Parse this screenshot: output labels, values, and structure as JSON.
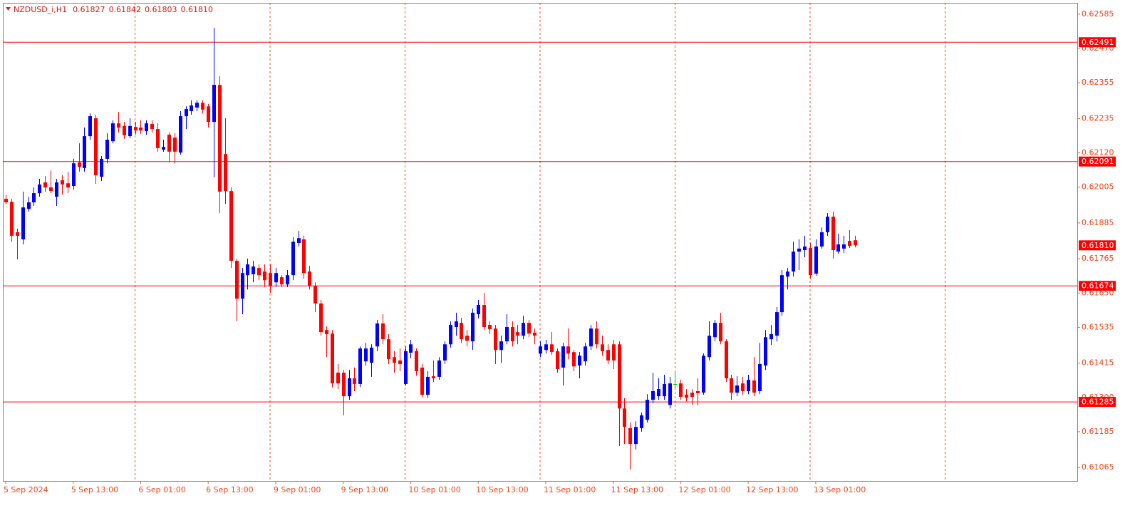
{
  "chart_data": {
    "type": "candlestick",
    "title": "NZDUSD_i,H1",
    "ohlc_labels": [
      "0.61827",
      "0.61842",
      "0.61803",
      "0.61810"
    ],
    "up_color": "#0000ff",
    "down_color": "#ff0000",
    "doji_color": "#00c000",
    "level_color": "#ff0000",
    "xlim": [
      -0.5,
      190.5
    ],
    "xticks": [
      {
        "value": 0,
        "label": "5 Sep 2024"
      },
      {
        "value": 12,
        "label": "5 Sep 13:00"
      },
      {
        "value": 24,
        "label": "6 Sep 01:00"
      },
      {
        "value": 36,
        "label": "6 Sep 13:00"
      },
      {
        "value": 48,
        "label": "9 Sep 01:00"
      },
      {
        "value": 60,
        "label": "9 Sep 13:00"
      },
      {
        "value": 72,
        "label": "10 Sep 01:00"
      },
      {
        "value": 84,
        "label": "10 Sep 13:00"
      },
      {
        "value": 96,
        "label": "11 Sep 01:00"
      },
      {
        "value": 108,
        "label": "11 Sep 13:00"
      },
      {
        "value": 120,
        "label": "12 Sep 01:00"
      },
      {
        "value": 132,
        "label": "12 Sep 13:00"
      },
      {
        "value": 144,
        "label": "13 Sep 01:00"
      }
    ],
    "ylim": [
      0.6102,
      0.62623
    ],
    "yticks": [
      0.62585,
      {
        "value": 0.6247,
        "label": "0.62470"
      },
      0.62355,
      0.62235,
      {
        "value": 0.6212,
        "label": "0.62120"
      },
      0.62005,
      0.61885,
      0.61765,
      {
        "value": 0.6165,
        "label": "0.61650"
      },
      0.61535,
      0.61415,
      {
        "value": 0.613,
        "label": "0.61300"
      },
      0.61185,
      0.61065
    ],
    "levels": [
      0.62491,
      0.62091,
      0.61674,
      0.61285
    ],
    "open": [
      0.61966,
      0.61956,
      0.61854,
      0.6183,
      0.61932,
      0.61954,
      0.61985,
      0.62021,
      0.62004,
      0.61973,
      0.62028,
      0.62018,
      0.62009,
      0.62088,
      0.62069,
      0.62176,
      0.62236,
      0.6204,
      0.621,
      0.62159,
      0.62219,
      0.6221,
      0.62176,
      0.62207,
      0.62205,
      0.62193,
      0.62217,
      0.622,
      0.62131,
      0.62181,
      0.62171,
      0.62121,
      0.62243,
      0.6226,
      0.62272,
      0.62288,
      0.62276,
      0.62224,
      0.62348,
      0.62116,
      0.61992,
      0.61758,
      0.61631,
      0.6171,
      0.61713,
      0.61734,
      0.61722,
      0.61717,
      0.61686,
      0.61703,
      0.61679,
      0.6171,
      0.61818,
      0.6183,
      0.61722,
      0.61674,
      0.61615,
      0.61526,
      0.61514,
      0.61383,
      0.61383,
      0.61304,
      0.61364,
      0.61345,
      0.61421,
      0.61416,
      0.61471,
      0.61548,
      0.61495,
      0.61435,
      0.61424,
      0.61345,
      0.6145,
      0.61455,
      0.614,
      0.61309,
      0.61371,
      0.61369,
      0.61424,
      0.61478,
      0.61536,
      0.6155,
      0.61507,
      0.61488,
      0.61579,
      0.6161,
      0.61543,
      0.61531,
      0.61459,
      0.61488,
      0.61536,
      0.61519,
      0.61507,
      0.6155,
      0.61517,
      0.61447,
      0.61459,
      0.61478,
      0.61455,
      0.614,
      0.61471,
      0.61452,
      0.61407,
      0.61421,
      0.61471,
      0.61531,
      0.61478,
      0.61459,
      0.61478,
      0.61478,
      0.61263,
      0.61197,
      0.61144,
      0.61197,
      0.61225,
      0.61292,
      0.61304,
      0.61304,
      0.61275,
      0.61345,
      0.61347,
      0.61309,
      0.61316,
      0.61321,
      0.61316,
      0.61435,
      0.61502,
      0.6155,
      0.61488,
      0.61364,
      0.61316,
      0.61347,
      0.61321,
      0.61357,
      0.61321,
      0.61407,
      0.61495,
      0.61507,
      0.61586,
      0.61705,
      0.61722,
      0.61789,
      0.61794,
      0.61801,
      0.61715,
      0.61806,
      0.61854,
      0.61906,
      0.61789,
      0.61799,
      0.61825,
      0.61827
    ],
    "high": [
      0.6198,
      0.61966,
      0.61866,
      0.6199,
      0.61973,
      0.62004,
      0.62033,
      0.62042,
      0.62061,
      0.62033,
      0.62045,
      0.62057,
      0.621,
      0.62152,
      0.62205,
      0.62252,
      0.62248,
      0.62109,
      0.62186,
      0.62229,
      0.62257,
      0.62224,
      0.62236,
      0.62224,
      0.62229,
      0.62229,
      0.62229,
      0.62219,
      0.62164,
      0.62188,
      0.62186,
      0.6226,
      0.62276,
      0.62296,
      0.62296,
      0.62296,
      0.62284,
      0.62539,
      0.62377,
      0.62236,
      0.62004,
      0.61765,
      0.61734,
      0.61765,
      0.61758,
      0.61746,
      0.61746,
      0.61746,
      0.61734,
      0.6171,
      0.61727,
      0.61837,
      0.61858,
      0.61842,
      0.61741,
      0.61686,
      0.61627,
      0.61538,
      0.61526,
      0.61412,
      0.61392,
      0.61392,
      0.614,
      0.61471,
      0.61483,
      0.61478,
      0.6156,
      0.61579,
      0.61512,
      0.61455,
      0.61464,
      0.61471,
      0.61493,
      0.61464,
      0.61412,
      0.61388,
      0.61424,
      0.61435,
      0.61488,
      0.61555,
      0.61584,
      0.61567,
      0.61526,
      0.61598,
      0.61627,
      0.6165,
      0.61555,
      0.61543,
      0.61507,
      0.61579,
      0.61555,
      0.61543,
      0.61574,
      0.6156,
      0.61531,
      0.61488,
      0.61493,
      0.61519,
      0.61464,
      0.61483,
      0.61531,
      0.61459,
      0.61452,
      0.61483,
      0.61543,
      0.61555,
      0.61507,
      0.61478,
      0.61493,
      0.61488,
      0.61297,
      0.61216,
      0.6122,
      0.61249,
      0.61311,
      0.61383,
      0.61364,
      0.61376,
      0.61369,
      0.61383,
      0.61359,
      0.61328,
      0.61328,
      0.61364,
      0.61447,
      0.61555,
      0.6156,
      0.61584,
      0.61495,
      0.61376,
      0.61371,
      0.61369,
      0.61376,
      0.61435,
      0.61483,
      0.61526,
      0.61543,
      0.61603,
      0.61727,
      0.61734,
      0.61822,
      0.6183,
      0.61842,
      0.61818,
      0.6183,
      0.6187,
      0.61918,
      0.61923,
      0.61849,
      0.61842,
      0.61861,
      0.61842
    ],
    "low": [
      0.61949,
      0.61822,
      0.61763,
      0.61813,
      0.61923,
      0.61942,
      0.61973,
      0.6199,
      0.61985,
      0.61942,
      0.6198,
      0.61985,
      0.61997,
      0.62057,
      0.62057,
      0.62164,
      0.62016,
      0.62026,
      0.62085,
      0.62152,
      0.62188,
      0.62167,
      0.62169,
      0.62181,
      0.62183,
      0.62181,
      0.62188,
      0.62124,
      0.62124,
      0.62088,
      0.62085,
      0.62114,
      0.622,
      0.62248,
      0.6226,
      0.62252,
      0.62205,
      0.62038,
      0.61918,
      0.61949,
      0.61734,
      0.61555,
      0.61579,
      0.61662,
      0.61686,
      0.61693,
      0.6167,
      0.6165,
      0.6167,
      0.6167,
      0.6167,
      0.61693,
      0.61806,
      0.61698,
      0.61662,
      0.61586,
      0.61507,
      0.61435,
      0.61333,
      0.61328,
      0.6124,
      0.61292,
      0.61321,
      0.61335,
      0.61407,
      0.61369,
      0.61455,
      0.61478,
      0.61412,
      0.61383,
      0.61388,
      0.6134,
      0.61431,
      0.61373,
      0.61299,
      0.61299,
      0.61352,
      0.61359,
      0.61412,
      0.61467,
      0.61507,
      0.61483,
      0.61471,
      0.61459,
      0.61565,
      0.61526,
      0.61512,
      0.61412,
      0.61416,
      0.61478,
      0.61471,
      0.61478,
      0.61495,
      0.61502,
      0.61478,
      0.61435,
      0.61447,
      0.61443,
      0.61383,
      0.6134,
      0.61428,
      0.61388,
      0.61364,
      0.61407,
      0.61459,
      0.61464,
      0.6144,
      0.61412,
      0.61395,
      0.61137,
      0.61144,
      0.61058,
      0.61125,
      0.61185,
      0.61216,
      0.6128,
      0.61292,
      0.61292,
      0.61263,
      0.61328,
      0.61292,
      0.61287,
      0.61275,
      0.61273,
      0.61309,
      0.61424,
      0.61488,
      0.61478,
      0.61352,
      0.61292,
      0.61304,
      0.61309,
      0.61311,
      0.61304,
      0.61311,
      0.61392,
      0.61476,
      0.61488,
      0.61574,
      0.61662,
      0.61705,
      0.61727,
      0.6177,
      0.61698,
      0.61708,
      0.61799,
      0.61842,
      0.61765,
      0.61782,
      0.61784,
      0.61801,
      0.61803
    ],
    "close": [
      0.61954,
      0.61842,
      0.61842,
      0.61937,
      0.61954,
      0.61985,
      0.62014,
      0.62004,
      0.61992,
      0.62021,
      0.62014,
      0.62004,
      0.62085,
      0.62073,
      0.62176,
      0.62243,
      0.62045,
      0.621,
      0.62164,
      0.62219,
      0.62205,
      0.62179,
      0.6221,
      0.62195,
      0.62195,
      0.62219,
      0.622,
      0.62136,
      0.6214,
      0.62124,
      0.62124,
      0.62243,
      0.62267,
      0.62279,
      0.62288,
      0.62265,
      0.62224,
      0.62348,
      0.6199,
      0.61992,
      0.61758,
      0.61631,
      0.61717,
      0.61746,
      0.61739,
      0.6171,
      0.61693,
      0.61674,
      0.61717,
      0.61679,
      0.6171,
      0.61822,
      0.61834,
      0.61717,
      0.61674,
      0.61615,
      0.61519,
      0.61512,
      0.61347,
      0.61347,
      0.61304,
      0.61364,
      0.61345,
      0.61464,
      0.61464,
      0.61467,
      0.61548,
      0.61495,
      0.61428,
      0.61416,
      0.61412,
      0.61455,
      0.61478,
      0.61388,
      0.61309,
      0.61369,
      0.61364,
      0.61424,
      0.61478,
      0.61543,
      0.61555,
      0.61495,
      0.6149,
      0.61584,
      0.6161,
      0.61536,
      0.61529,
      0.61459,
      0.61488,
      0.61536,
      0.61488,
      0.61507,
      0.6155,
      0.61514,
      0.61507,
      0.61471,
      0.61478,
      0.61452,
      0.61395,
      0.61471,
      0.61447,
      0.61404,
      0.6144,
      0.61471,
      0.61531,
      0.61478,
      0.61455,
      0.61424,
      0.61424,
      0.61263,
      0.61201,
      0.61144,
      0.61201,
      0.6124,
      0.61292,
      0.61321,
      0.61328,
      0.61345,
      0.61347,
      0.61345,
      0.61302,
      0.61299,
      0.61302,
      0.61314,
      0.6144,
      0.61507,
      0.6155,
      0.61488,
      0.61364,
      0.61316,
      0.6134,
      0.61321,
      0.61359,
      0.61316,
      0.61412,
      0.61502,
      0.61512,
      0.61586,
      0.6171,
      0.61722,
      0.61789,
      0.61799,
      0.61806,
      0.6171,
      0.61806,
      0.61854,
      0.61906,
      0.61794,
      0.61813,
      0.61813,
      0.61808,
      0.6181
    ]
  }
}
